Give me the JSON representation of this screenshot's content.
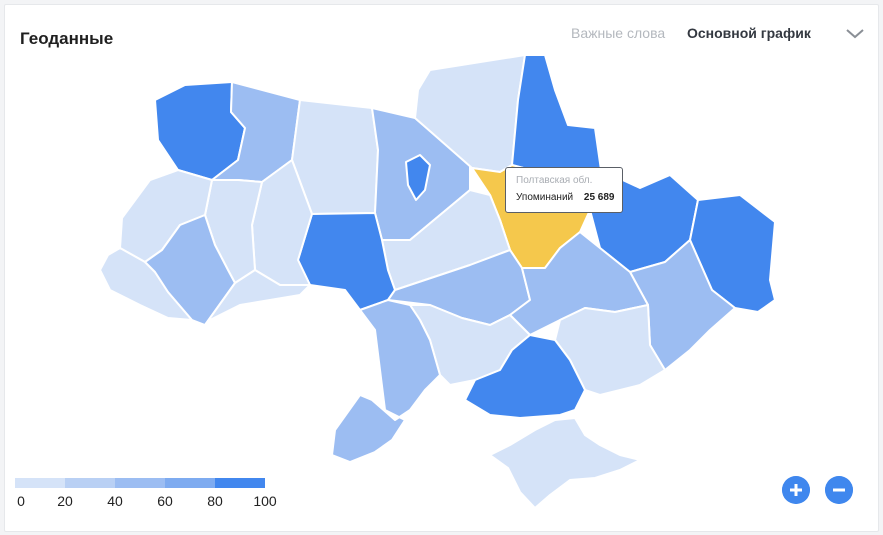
{
  "header": {
    "title": "Геоданные",
    "tabs": [
      {
        "label": "Важные слова",
        "active": false
      },
      {
        "label": "Основной график",
        "active": true
      }
    ]
  },
  "colors": {
    "scale": [
      "#d5e3f8",
      "#b9d0f4",
      "#9cbdf2",
      "#7eabf0",
      "#4287ee"
    ],
    "highlight": "#f5c84c",
    "accent": "#3f87ee"
  },
  "map": {
    "hovered_region": "Полтавская обл.",
    "regions": [
      {
        "name": "Волынская обл.",
        "level": 5
      },
      {
        "name": "Ровенская обл.",
        "level": 3
      },
      {
        "name": "Житомирская обл.",
        "level": 1
      },
      {
        "name": "Киевская обл.",
        "level": 3
      },
      {
        "name": "Киев",
        "level": 5
      },
      {
        "name": "Черниговская обл.",
        "level": 1
      },
      {
        "name": "Сумская обл.",
        "level": 5
      },
      {
        "name": "Харьковская обл.",
        "level": 5
      },
      {
        "name": "Луганская обл.",
        "level": 5
      },
      {
        "name": "Донецкая обл.",
        "level": 3
      },
      {
        "name": "Полтавская обл.",
        "level": 0
      },
      {
        "name": "Черкасская обл.",
        "level": 1
      },
      {
        "name": "Винницкая обл.",
        "level": 5
      },
      {
        "name": "Хмельницкая обл.",
        "level": 1
      },
      {
        "name": "Тернопольская обл.",
        "level": 1
      },
      {
        "name": "Львовская обл.",
        "level": 1
      },
      {
        "name": "Закарпатская обл.",
        "level": 1
      },
      {
        "name": "Ивано-Франковская обл.",
        "level": 3
      },
      {
        "name": "Черновицкая обл.",
        "level": 1
      },
      {
        "name": "Кировоградская обл.",
        "level": 3
      },
      {
        "name": "Днепропетровская обл.",
        "level": 3
      },
      {
        "name": "Запорожская обл.",
        "level": 1
      },
      {
        "name": "Николаевская обл.",
        "level": 1
      },
      {
        "name": "Одесская обл.",
        "level": 3
      },
      {
        "name": "Херсонская обл.",
        "level": 5
      },
      {
        "name": "АР Крым",
        "level": 1
      }
    ]
  },
  "tooltip": {
    "region": "Полтавская обл.",
    "metric_label": "Упоминаний",
    "value": "25 689"
  },
  "legend": {
    "ticks": [
      "0",
      "20",
      "40",
      "60",
      "80",
      "100"
    ]
  },
  "zoom": {
    "in_icon": "plus-icon",
    "out_icon": "minus-icon"
  }
}
